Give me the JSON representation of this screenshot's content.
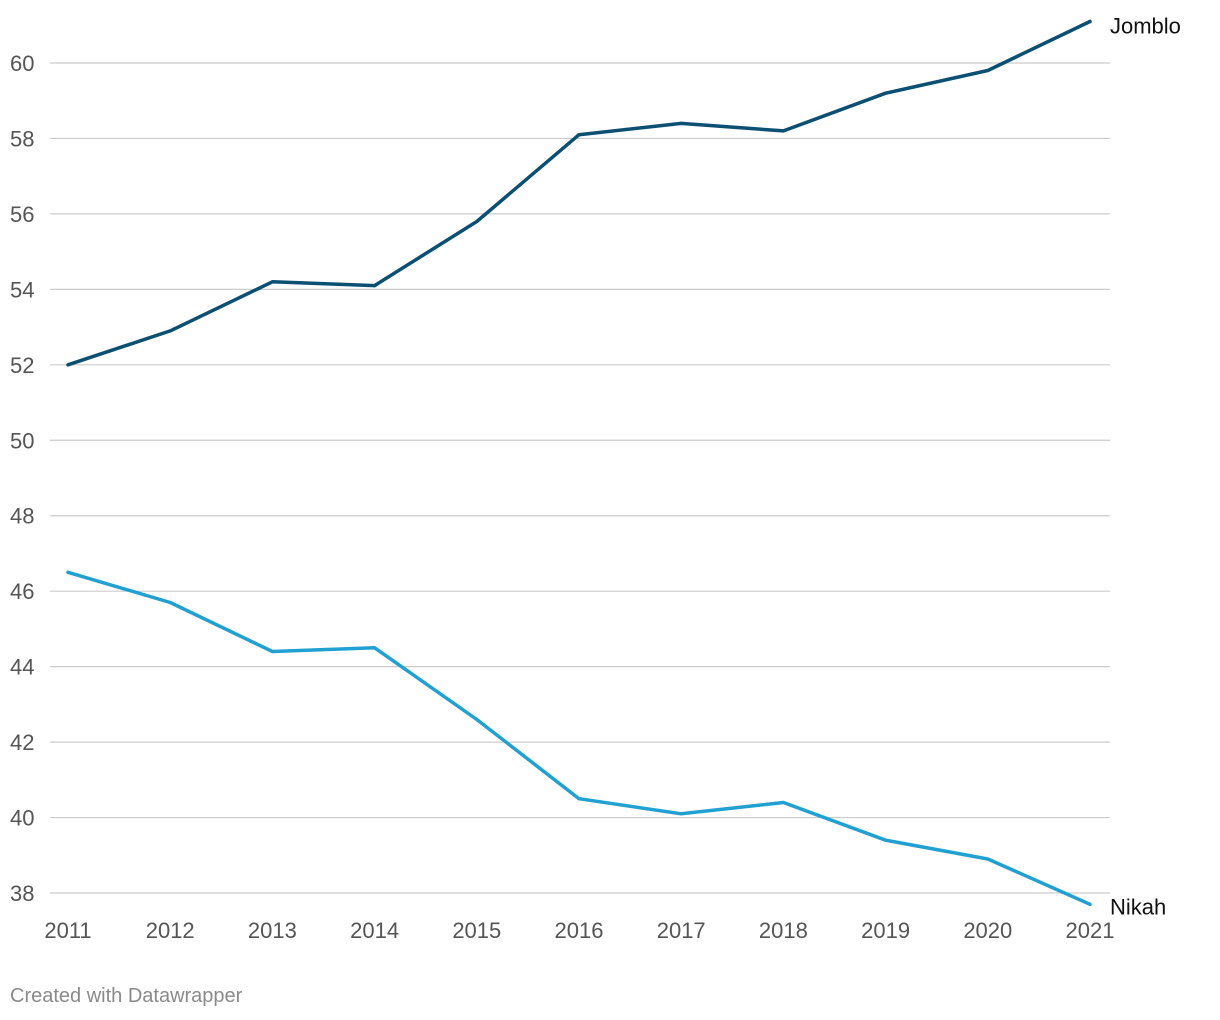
{
  "chart_data": {
    "type": "line",
    "x": [
      "2011",
      "2012",
      "2013",
      "2014",
      "2015",
      "2016",
      "2017",
      "2018",
      "2019",
      "2020",
      "2021"
    ],
    "series": [
      {
        "name": "Jomblo",
        "color": "#0b4f73",
        "values": [
          52.0,
          52.9,
          54.2,
          54.1,
          55.8,
          58.1,
          58.4,
          58.2,
          59.2,
          59.8,
          61.1
        ]
      },
      {
        "name": "Nikah",
        "color": "#21a0d2",
        "values": [
          46.5,
          45.7,
          44.4,
          44.5,
          42.6,
          40.5,
          40.1,
          40.4,
          39.4,
          38.9,
          37.7
        ]
      }
    ],
    "yticks": [
      "38",
      "40",
      "42",
      "44",
      "46",
      "48",
      "50",
      "52",
      "54",
      "56",
      "58",
      "60"
    ],
    "ylim": [
      38,
      60
    ],
    "grid": true,
    "legend": "direct labels at line ends",
    "title": "",
    "xlabel": "",
    "ylabel": ""
  },
  "footer": {
    "credit": "Created with Datawrapper"
  }
}
